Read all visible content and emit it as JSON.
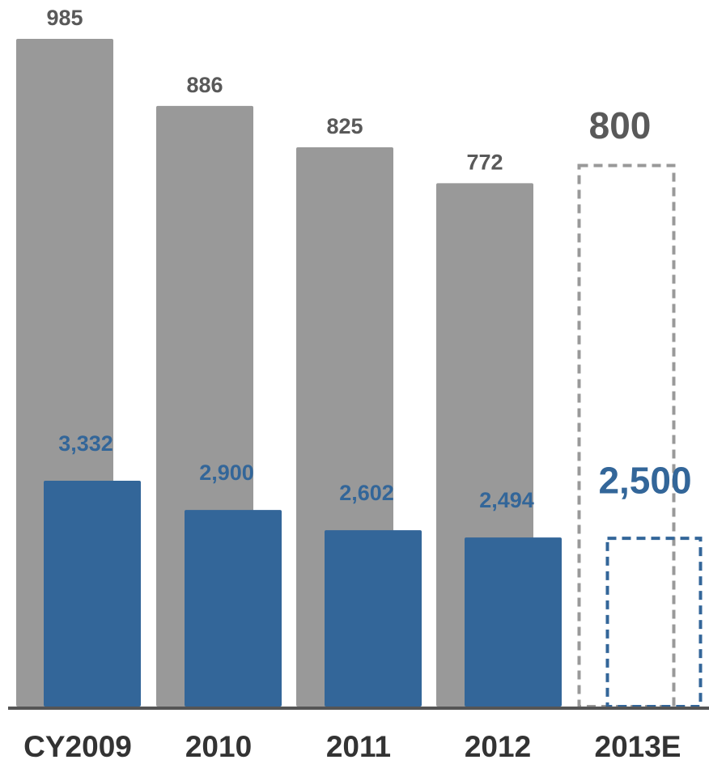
{
  "chart_data": {
    "type": "bar",
    "categories": [
      "CY2009",
      "2010",
      "2011",
      "2012",
      "2013E"
    ],
    "series": [
      {
        "values": [
          985,
          886,
          825,
          772,
          800
        ],
        "value_labels": [
          "985",
          "886",
          "825",
          "772",
          "800"
        ],
        "color": "#999999",
        "estimated": [
          false,
          false,
          false,
          false,
          true
        ]
      },
      {
        "values": [
          3332,
          2900,
          2602,
          2494,
          2500
        ],
        "value_labels": [
          "3,332",
          "2,900",
          "2,602",
          "2,494",
          "2,500"
        ],
        "color": "#336699",
        "estimated": [
          false,
          false,
          false,
          false,
          true
        ]
      }
    ],
    "axis_line_color": "#555555",
    "label_color_gray": "#595959",
    "label_color_blue": "#336699",
    "category_label_color": "#333333",
    "title": "",
    "xlabel": "",
    "ylabel": "",
    "grid": false,
    "legend": "none"
  }
}
